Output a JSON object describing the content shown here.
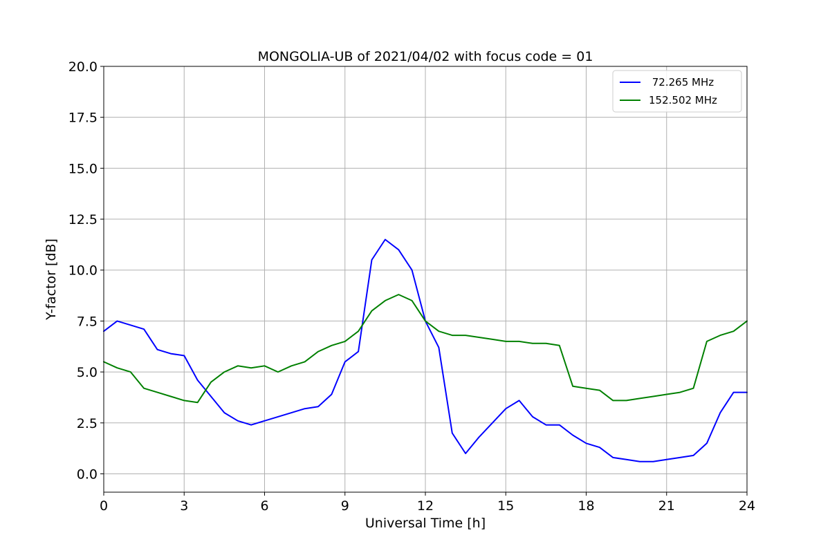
{
  "chart_data": {
    "type": "line",
    "title": "MONGOLIA-UB of 2021/04/02 with focus code = 01",
    "xlabel": "Universal Time [h]",
    "ylabel": "Y-factor [dB]",
    "xlim": [
      0,
      24
    ],
    "ylim": [
      -0.9,
      20.0
    ],
    "xticks": [
      0,
      3,
      6,
      9,
      12,
      15,
      18,
      21,
      24
    ],
    "xtick_labels": [
      "0",
      "3",
      "6",
      "9",
      "12",
      "15",
      "18",
      "21",
      "24"
    ],
    "yticks": [
      0,
      2.5,
      5,
      7.5,
      10,
      12.5,
      15,
      17.5,
      20
    ],
    "ytick_labels": [
      "0.0",
      "2.5",
      "5.0",
      "7.5",
      "10.0",
      "12.5",
      "15.0",
      "17.5",
      "20.0"
    ],
    "grid": true,
    "legend_position": "top-right",
    "series": [
      {
        "name": " 72.265 MHz",
        "color": "#0000ff",
        "x": [
          0,
          0.5,
          1,
          1.5,
          2,
          2.5,
          3,
          3.5,
          4,
          4.5,
          5,
          5.5,
          6,
          6.5,
          7,
          7.5,
          8,
          8.5,
          9,
          9.5,
          10,
          10.5,
          11,
          11.5,
          12,
          12.5,
          13,
          13.5,
          14,
          14.5,
          15,
          15.5,
          16,
          16.5,
          17,
          17.5,
          18,
          18.5,
          19,
          19.5,
          20,
          20.5,
          21,
          21.5,
          22,
          22.5,
          23,
          23.5,
          24
        ],
        "values": [
          7.0,
          7.5,
          7.3,
          7.1,
          6.1,
          5.9,
          5.8,
          4.6,
          3.8,
          3.0,
          2.6,
          2.4,
          2.6,
          2.8,
          3.0,
          3.2,
          3.3,
          3.9,
          5.5,
          6.0,
          10.5,
          11.5,
          11.0,
          10.0,
          7.5,
          6.2,
          2.0,
          1.0,
          1.8,
          2.5,
          3.2,
          3.6,
          2.8,
          2.4,
          2.4,
          1.9,
          1.5,
          1.3,
          0.8,
          0.7,
          0.6,
          0.6,
          0.7,
          0.8,
          0.9,
          1.5,
          3.0,
          4.0,
          4.0
        ]
      },
      {
        "name": "152.502 MHz",
        "color": "#008000",
        "x": [
          0,
          0.5,
          1,
          1.5,
          2,
          2.5,
          3,
          3.5,
          4,
          4.5,
          5,
          5.5,
          6,
          6.5,
          7,
          7.5,
          8,
          8.5,
          9,
          9.5,
          10,
          10.5,
          11,
          11.5,
          12,
          12.5,
          13,
          13.5,
          14,
          14.5,
          15,
          15.5,
          16,
          16.5,
          17,
          17.5,
          18,
          18.5,
          19,
          19.5,
          20,
          20.5,
          21,
          21.5,
          22,
          22.5,
          23,
          23.5,
          24
        ],
        "values": [
          5.5,
          5.2,
          5.0,
          4.2,
          4.0,
          3.8,
          3.6,
          3.5,
          4.5,
          5.0,
          5.3,
          5.2,
          5.3,
          5.0,
          5.3,
          5.5,
          6.0,
          6.3,
          6.5,
          7.0,
          8.0,
          8.5,
          8.8,
          8.5,
          7.5,
          7.0,
          6.8,
          6.8,
          6.7,
          6.6,
          6.5,
          6.5,
          6.4,
          6.4,
          6.3,
          4.3,
          4.2,
          4.1,
          3.6,
          3.6,
          3.7,
          3.8,
          3.9,
          4.0,
          4.2,
          6.5,
          6.8,
          7.0,
          7.5
        ]
      }
    ]
  }
}
